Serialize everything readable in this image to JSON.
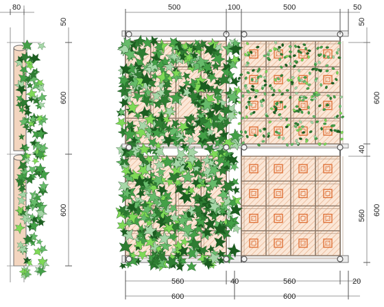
{
  "top_dims": {
    "left_80": "80",
    "a_500": "500",
    "b_100": "100",
    "c_500": "500",
    "d_50": "50"
  },
  "right_dims": {
    "r50": "50",
    "r600": "600",
    "r40": "40",
    "r560": "560",
    "r600b": "600"
  },
  "side_dims": {
    "s50": "50",
    "s600a": "600",
    "s600b": "600"
  },
  "bottom_dims": {
    "b560a": "560",
    "b40": "40",
    "b560b": "560",
    "b20": "20",
    "b600a": "600",
    "b600b": "600"
  },
  "colors": {
    "leaf_dark": "#2e7d32",
    "leaf_mid": "#43a047",
    "leaf_light": "#7ed957",
    "leaf_pale": "#a5d6a7",
    "panel_fill": "#f7dcc6",
    "panel_line": "#d9a27e",
    "frame": "#666666",
    "pot": "#e0733a"
  },
  "icons": {
    "bolt": "bolt-icon",
    "pot": "planter-pot-icon",
    "leaf": "ivy-leaf-icon"
  }
}
